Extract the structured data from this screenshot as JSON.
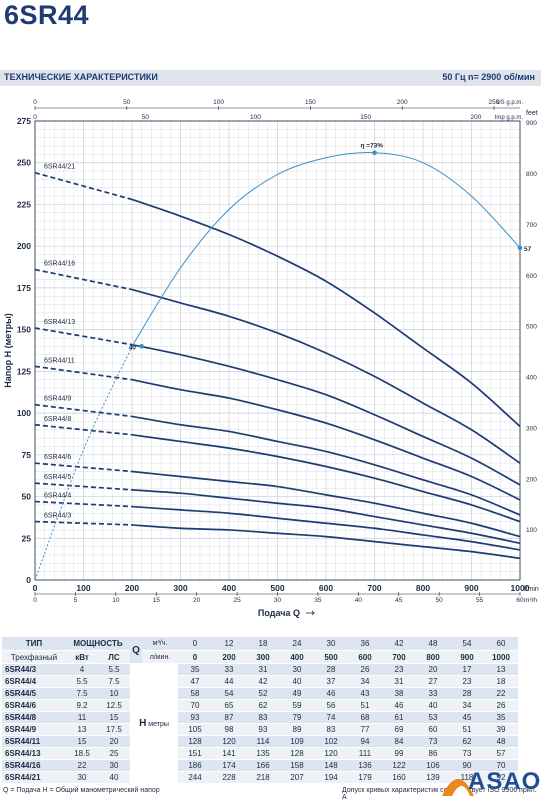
{
  "title": "6SR44",
  "header": {
    "left": "ТЕХНИЧЕСКИЕ ХАРАКТЕРИСТИКИ",
    "right": "50 Гц   n= 2900 об/мин"
  },
  "colors": {
    "curve": "#1f3b73",
    "efficiency": "#3a8fc9",
    "grid": "#c8ced8",
    "brand": "#1f3b73"
  },
  "chart_data": {
    "type": "line",
    "ylabel": "Напор H (метры)",
    "xlabel": "Подача Q",
    "x_unit_lmin": "l/min",
    "x_unit_m3h": "m³/h",
    "x_unit_usgpm": "US g.p.m.",
    "x_unit_impgpm": "Imp g.p.m.",
    "y2_unit": "feet",
    "xlim_lmin": [
      0,
      1000
    ],
    "ylim": [
      0,
      275
    ],
    "grid": true,
    "x_ticks_lmin": [
      0,
      100,
      200,
      300,
      400,
      500,
      600,
      700,
      800,
      900,
      1000
    ],
    "x_ticks_m3h": [
      0,
      5,
      10,
      15,
      20,
      25,
      30,
      35,
      40,
      45,
      50,
      55,
      60
    ],
    "x_ticks_usgpm": [
      0,
      50,
      100,
      150,
      200,
      250
    ],
    "x_ticks_impgpm": [
      0,
      50,
      100,
      150,
      200
    ],
    "y_ticks": [
      0,
      25,
      50,
      75,
      100,
      125,
      150,
      175,
      200,
      225,
      250,
      275
    ],
    "y2_ticks": [
      100,
      200,
      300,
      400,
      500,
      600,
      700,
      800,
      900
    ],
    "x_m3h": [
      0,
      12,
      18,
      24,
      30,
      36,
      42,
      48,
      54,
      60
    ],
    "x_lmin": [
      0,
      200,
      300,
      400,
      500,
      600,
      700,
      800,
      900,
      1000
    ],
    "series": [
      {
        "name": "6SR44/3",
        "values": [
          35,
          33,
          31,
          30,
          28,
          26,
          23,
          20,
          17,
          13
        ]
      },
      {
        "name": "6SR44/4",
        "values": [
          47,
          44,
          42,
          40,
          37,
          34,
          31,
          27,
          23,
          18
        ]
      },
      {
        "name": "6SR44/5",
        "values": [
          58,
          54,
          52,
          49,
          46,
          43,
          38,
          33,
          28,
          22
        ]
      },
      {
        "name": "6SR44/6",
        "values": [
          70,
          65,
          62,
          59,
          56,
          51,
          46,
          40,
          34,
          26
        ]
      },
      {
        "name": "6SR44/8",
        "values": [
          93,
          87,
          83,
          79,
          74,
          68,
          61,
          53,
          45,
          35
        ]
      },
      {
        "name": "6SR44/9",
        "values": [
          105,
          98,
          93,
          89,
          83,
          77,
          69,
          60,
          51,
          39
        ]
      },
      {
        "name": "6SR44/11",
        "values": [
          128,
          120,
          114,
          109,
          102,
          94,
          84,
          73,
          62,
          48
        ]
      },
      {
        "name": "6SR44/13",
        "values": [
          151,
          141,
          135,
          128,
          120,
          111,
          99,
          86,
          73,
          57
        ]
      },
      {
        "name": "6SR44/16",
        "values": [
          186,
          174,
          166,
          158,
          148,
          136,
          122,
          106,
          90,
          70
        ]
      },
      {
        "name": "6SR44/21",
        "values": [
          244,
          228,
          218,
          207,
          194,
          179,
          160,
          139,
          118,
          92
        ]
      }
    ],
    "efficiency": {
      "label_peak": "η =73%",
      "label_start": "40",
      "label_end": "57",
      "points": [
        [
          0,
          0
        ],
        [
          100,
          78
        ],
        [
          200,
          140
        ],
        [
          300,
          187
        ],
        [
          400,
          222
        ],
        [
          500,
          243
        ],
        [
          600,
          253
        ],
        [
          700,
          256
        ],
        [
          800,
          250
        ],
        [
          900,
          230
        ],
        [
          1000,
          199
        ]
      ],
      "marked": [
        [
          220,
          140
        ],
        [
          700,
          256
        ],
        [
          1000,
          199
        ]
      ]
    }
  },
  "table": {
    "h_type": "ТИП",
    "h_power": "МОЩНОСТЬ",
    "h_q": "Q",
    "h_m3h": "м³/ч.",
    "h_lmin": "л/мин.",
    "h_phase": "Трехфазный",
    "h_kw": "кВт",
    "h_hp": "ЛС",
    "h_h": "H",
    "h_meters": "метры",
    "q_m3h": [
      "0",
      "12",
      "18",
      "24",
      "30",
      "36",
      "42",
      "48",
      "54",
      "60"
    ],
    "q_lmin": [
      "0",
      "200",
      "300",
      "400",
      "500",
      "600",
      "700",
      "800",
      "900",
      "1000"
    ],
    "rows": [
      {
        "type": "6SR44/3",
        "kw": "4",
        "hp": "5.5",
        "h": [
          "35",
          "33",
          "31",
          "30",
          "28",
          "26",
          "23",
          "20",
          "17",
          "13"
        ]
      },
      {
        "type": "6SR44/4",
        "kw": "5.5",
        "hp": "7.5",
        "h": [
          "47",
          "44",
          "42",
          "40",
          "37",
          "34",
          "31",
          "27",
          "23",
          "18"
        ]
      },
      {
        "type": "6SR44/5",
        "kw": "7.5",
        "hp": "10",
        "h": [
          "58",
          "54",
          "52",
          "49",
          "46",
          "43",
          "38",
          "33",
          "28",
          "22"
        ]
      },
      {
        "type": "6SR44/6",
        "kw": "9.2",
        "hp": "12.5",
        "h": [
          "70",
          "65",
          "62",
          "59",
          "56",
          "51",
          "46",
          "40",
          "34",
          "26"
        ]
      },
      {
        "type": "6SR44/8",
        "kw": "11",
        "hp": "15",
        "h": [
          "93",
          "87",
          "83",
          "79",
          "74",
          "68",
          "61",
          "53",
          "45",
          "35"
        ]
      },
      {
        "type": "6SR44/9",
        "kw": "13",
        "hp": "17.5",
        "h": [
          "105",
          "98",
          "93",
          "89",
          "83",
          "77",
          "69",
          "60",
          "51",
          "39"
        ]
      },
      {
        "type": "6SR44/11",
        "kw": "15",
        "hp": "20",
        "h": [
          "128",
          "120",
          "114",
          "109",
          "102",
          "94",
          "84",
          "73",
          "62",
          "48"
        ]
      },
      {
        "type": "6SR44/13",
        "kw": "18.5",
        "hp": "25",
        "h": [
          "151",
          "141",
          "135",
          "128",
          "120",
          "111",
          "99",
          "86",
          "73",
          "57"
        ]
      },
      {
        "type": "6SR44/16",
        "kw": "22",
        "hp": "30",
        "h": [
          "186",
          "174",
          "166",
          "158",
          "148",
          "136",
          "122",
          "106",
          "90",
          "70"
        ]
      },
      {
        "type": "6SR44/21",
        "kw": "30",
        "hp": "40",
        "h": [
          "244",
          "228",
          "218",
          "207",
          "194",
          "179",
          "160",
          "139",
          "118",
          "92"
        ]
      }
    ]
  },
  "footer": {
    "left": "Q = Подача  H = Общий манометрический напор",
    "right": "Допуск кривых характеристик соответствует ISO 9906 прил. A"
  },
  "logo": {
    "text": "ASAO"
  }
}
